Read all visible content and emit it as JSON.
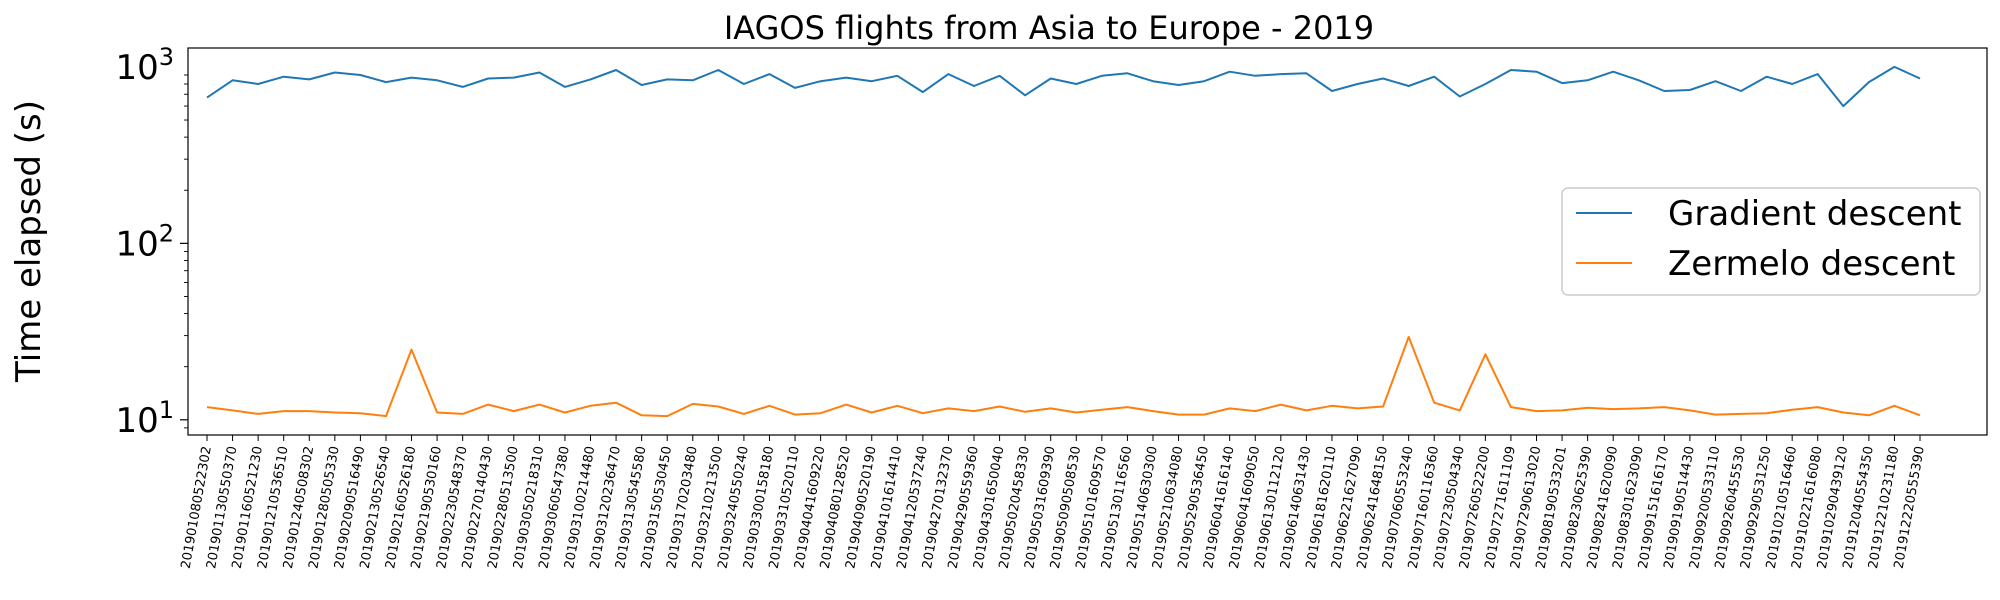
{
  "chart_data": {
    "type": "line",
    "title": "IAGOS flights from Asia to Europe - 2019",
    "xlabel": "",
    "ylabel": "Time elapsed (s)",
    "yscale": "log",
    "ylim": [
      8.2,
      1280
    ],
    "yticks": [
      {
        "value": 10,
        "base": "10",
        "exp": "1"
      },
      {
        "value": 100,
        "base": "10",
        "exp": "2"
      },
      {
        "value": 1000,
        "base": "10",
        "exp": "3"
      }
    ],
    "legend_position": "center-right",
    "grid": false,
    "categories": [
      "201901080522302",
      "201901130550370",
      "201901160521230",
      "201901210536510",
      "201901240508302",
      "201901280505330",
      "201902090516490",
      "201902130526540",
      "201902160526180",
      "201902190530160",
      "201902230548370",
      "201902270140430",
      "201902280513500",
      "201903050218310",
      "201903060547380",
      "201903100214480",
      "201903120236470",
      "201903130545580",
      "201903150530450",
      "201903170203480",
      "201903210213500",
      "201903240550240",
      "201903300158180",
      "201903310520110",
      "201904041609220",
      "201904080128520",
      "201904090520190",
      "201904101614410",
      "201904120537240",
      "201904270132370",
      "201904290559360",
      "201904301650040",
      "201905020458330",
      "201905031609390",
      "201905090508530",
      "201905101609570",
      "201905130116560",
      "201905140630300",
      "201905210634080",
      "201905290536450",
      "201906041616140",
      "201906041609050",
      "201906130112120",
      "201906140631430",
      "201906181620110",
      "201906221627090",
      "201906241648150",
      "201907060553240",
      "201907160116360",
      "201907230504340",
      "201907260522200",
      "201907271611109",
      "201907290613020",
      "201908190533201",
      "201908230625390",
      "201908241620090",
      "201908301623090",
      "201909151616170",
      "201909190514430",
      "201909200533110",
      "201909260455530",
      "201909290531250",
      "201910210516460",
      "201910221616080",
      "201910290439120",
      "201912040554350",
      "201912210231180",
      "201912220555390"
    ],
    "series": [
      {
        "name": "Gradient descent",
        "color": "#1f77b4",
        "values": [
          670,
          840,
          800,
          880,
          850,
          930,
          900,
          820,
          870,
          840,
          770,
          860,
          870,
          930,
          770,
          850,
          960,
          790,
          850,
          840,
          960,
          800,
          910,
          760,
          830,
          870,
          830,
          890,
          720,
          910,
          780,
          890,
          690,
          860,
          800,
          890,
          920,
          830,
          790,
          830,
          940,
          890,
          910,
          920,
          730,
          800,
          860,
          780,
          880,
          680,
          800,
          960,
          940,
          810,
          840,
          940,
          840,
          730,
          740,
          830,
          730,
          880,
          800,
          910,
          600,
          820,
          1000,
          860
        ]
      },
      {
        "name": "Zermelo descent",
        "color": "#ff7f0e",
        "values": [
          11.8,
          11.3,
          10.8,
          11.2,
          11.2,
          11.0,
          10.9,
          10.5,
          25.0,
          11.0,
          10.8,
          12.2,
          11.2,
          12.2,
          11.0,
          12.0,
          12.5,
          10.6,
          10.5,
          12.3,
          11.9,
          10.8,
          12.0,
          10.7,
          10.9,
          12.2,
          11.0,
          12.0,
          10.9,
          11.6,
          11.2,
          11.9,
          11.1,
          11.6,
          11.0,
          11.4,
          11.8,
          11.2,
          10.7,
          10.7,
          11.6,
          11.2,
          12.2,
          11.3,
          12.0,
          11.6,
          11.9,
          29.5,
          12.5,
          11.3,
          23.5,
          11.8,
          11.2,
          11.3,
          11.7,
          11.5,
          11.6,
          11.8,
          11.3,
          10.7,
          10.8,
          10.9,
          11.4,
          11.8,
          11.0,
          10.6,
          12.0,
          10.6
        ]
      }
    ]
  }
}
